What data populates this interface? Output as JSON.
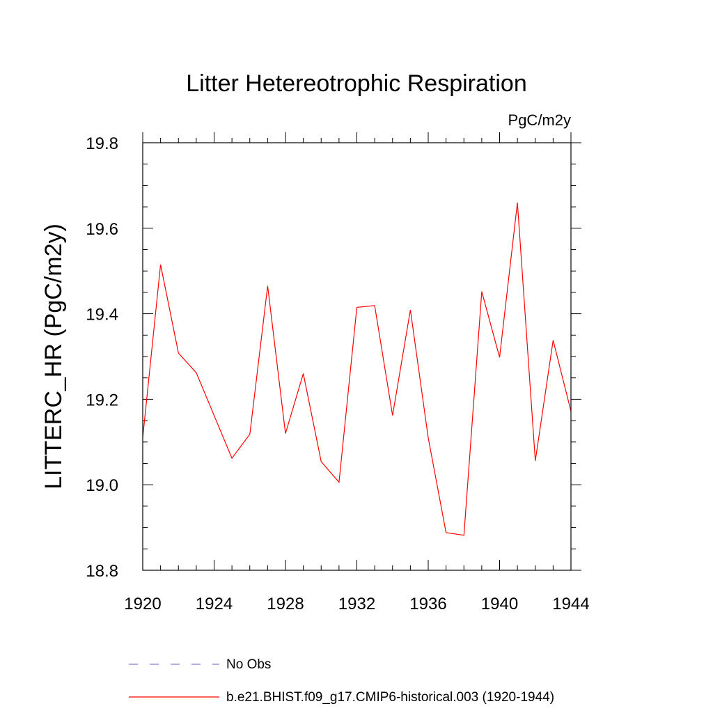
{
  "chart_data": {
    "type": "line",
    "title": "Litter Hetereotrophic Respiration",
    "units_label": "PgC/m2y",
    "ylabel": "LITTERC_HR  (PgC/m2y)",
    "xlabel": "",
    "xlim": [
      1920,
      1944
    ],
    "ylim": [
      18.8,
      19.8
    ],
    "x_ticks": [
      "1920",
      "1924",
      "1928",
      "1932",
      "1936",
      "1940",
      "1944"
    ],
    "y_ticks": [
      "18.8",
      "19.0",
      "19.2",
      "19.4",
      "19.6",
      "19.8"
    ],
    "x": [
      1920,
      1921,
      1922,
      1923,
      1924,
      1925,
      1926,
      1927,
      1928,
      1929,
      1930,
      1931,
      1932,
      1933,
      1934,
      1935,
      1936,
      1937,
      1938,
      1939,
      1940,
      1941,
      1942,
      1943,
      1944
    ],
    "series": [
      {
        "name": "b.e21.BHIST.f09_g17.CMIP6-historical.003 (1920-1944)",
        "color": "#ff0000",
        "style": "solid",
        "values": [
          19.11,
          19.515,
          19.308,
          19.262,
          19.162,
          19.062,
          19.118,
          19.465,
          19.12,
          19.26,
          19.054,
          19.006,
          19.415,
          19.419,
          19.162,
          19.409,
          19.11,
          18.888,
          18.882,
          19.452,
          19.298,
          19.66,
          19.056,
          19.338,
          19.172
        ]
      }
    ],
    "legend": [
      {
        "label": "No Obs",
        "color": "#7f7fd0",
        "style": "dashed"
      },
      {
        "label": "b.e21.BHIST.f09_g17.CMIP6-historical.003 (1920-1944)",
        "color": "#ff0000",
        "style": "solid"
      }
    ]
  }
}
